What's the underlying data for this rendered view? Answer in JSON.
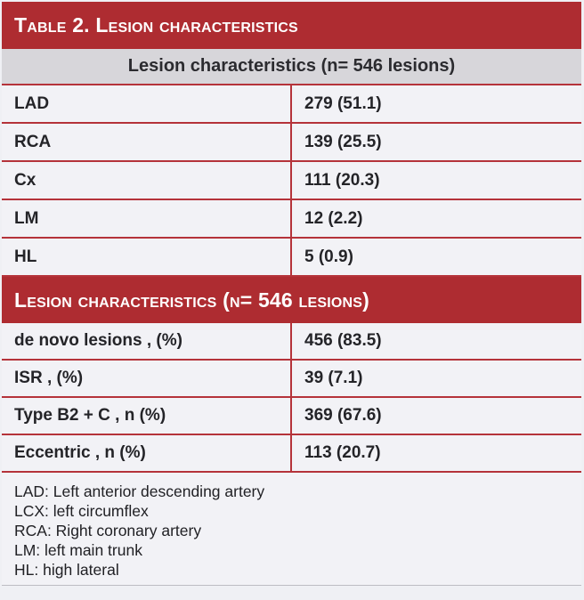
{
  "banner": {
    "title": "Table 2. Lesion characteristics"
  },
  "subheader": {
    "text": "Lesion characteristics (n= 546 lesions)"
  },
  "vessel_rows": [
    {
      "label": "LAD",
      "value": "279 (51.1)"
    },
    {
      "label": "RCA",
      "value": "139 (25.5)"
    },
    {
      "label": "Cx",
      "value": "111 (20.3)"
    },
    {
      "label": "LM",
      "value": "12 (2.2)"
    },
    {
      "label": "HL",
      "value": "5 (0.9)"
    }
  ],
  "lesion_banner": {
    "title": "Lesion characteristics (n= 546 lesions)"
  },
  "lesion_rows": [
    {
      "label": "de novo lesions , (%)",
      "value": "456 (83.5)"
    },
    {
      "label": "ISR , (%)",
      "value": "39 (7.1)"
    },
    {
      "label": "Type B2 + C , n (%)",
      "value": "369 (67.6)"
    },
    {
      "label": "Eccentric , n (%)",
      "value": "113 (20.7)"
    }
  ],
  "footnotes": [
    "LAD: Left anterior descending artery",
    "LCX: left circumflex",
    "RCA: Right coronary artery",
    "LM: left main trunk",
    "HL: high lateral"
  ],
  "colors": {
    "banner_red": "#ae2c31",
    "border_red": "#b5333a",
    "row_bg": "#f2f2f6",
    "subheader_bg": "#d7d6da",
    "page_bg": "#eff0f4",
    "text_dark": "#242428",
    "footnote_rule": "#bdbdc3"
  }
}
